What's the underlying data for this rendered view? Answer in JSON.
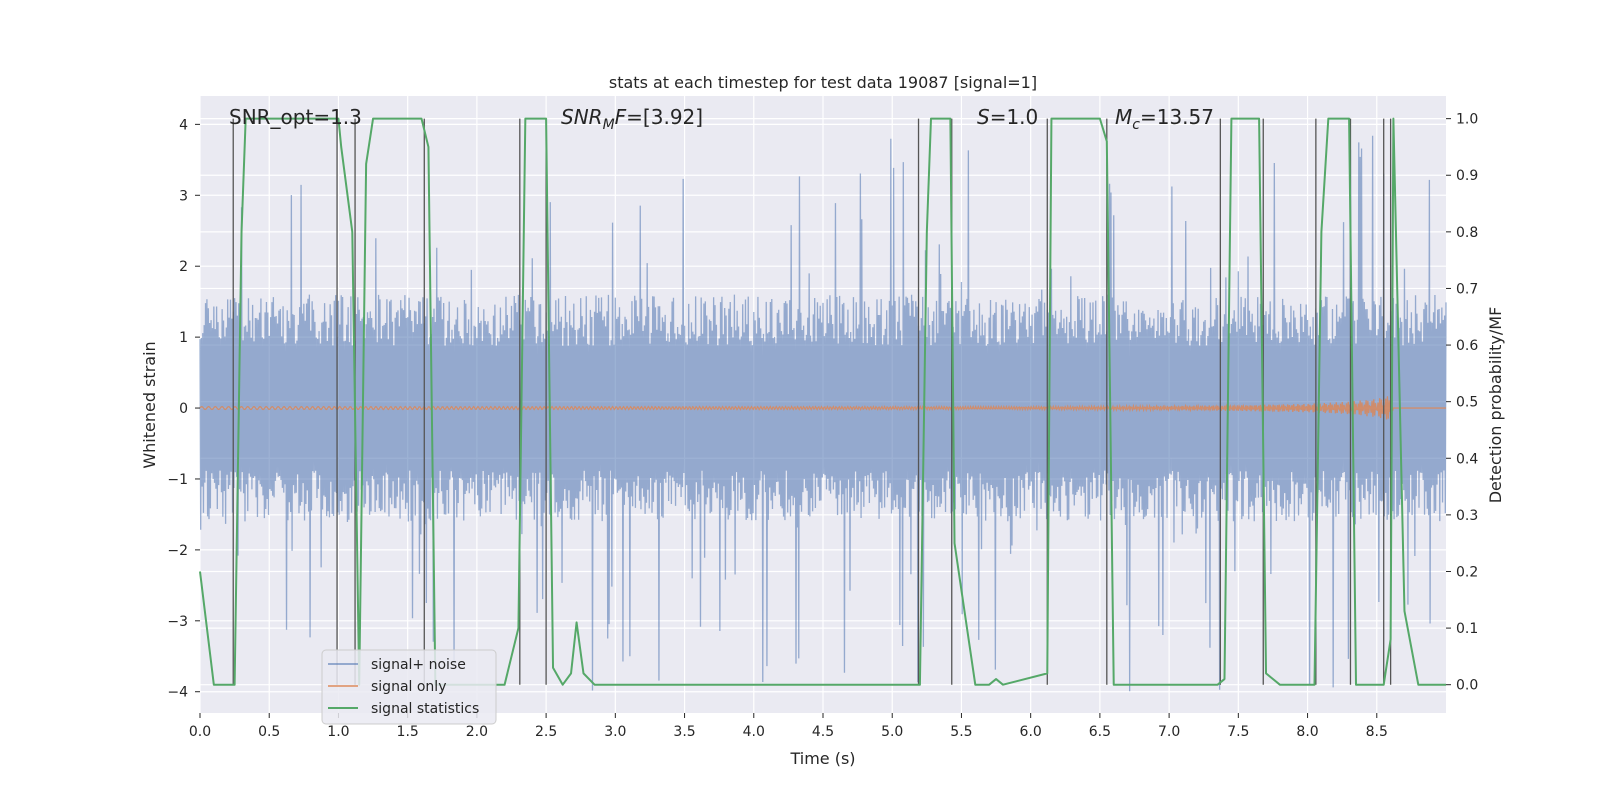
{
  "chart_data": {
    "type": "line",
    "title": "stats at each timestep for test data 19087 [signal=1]",
    "xlabel": "Time (s)",
    "ylabel_left": "Whitened strain",
    "ylabel_right": "Detection probability/MF",
    "xlim": [
      0,
      9
    ],
    "ylim_left": [
      -4.3,
      4.4
    ],
    "ylim_right": [
      -0.05,
      1.04
    ],
    "x_ticks": [
      0.0,
      0.5,
      1.0,
      1.5,
      2.0,
      2.5,
      3.0,
      3.5,
      4.0,
      4.5,
      5.0,
      5.5,
      6.0,
      6.5,
      7.0,
      7.5,
      8.0,
      8.5
    ],
    "x_tick_labels": [
      "0.0",
      "0.5",
      "1.0",
      "1.5",
      "2.0",
      "2.5",
      "3.0",
      "3.5",
      "4.0",
      "4.5",
      "5.0",
      "5.5",
      "6.0",
      "6.5",
      "7.0",
      "7.5",
      "8.0",
      "8.5"
    ],
    "y_left_ticks": [
      -4,
      -3,
      -2,
      -1,
      0,
      1,
      2,
      3,
      4
    ],
    "y_left_tick_labels": [
      "−4",
      "−3",
      "−2",
      "−1",
      "0",
      "1",
      "2",
      "3",
      "4"
    ],
    "y_right_ticks": [
      0.0,
      0.1,
      0.2,
      0.3,
      0.4,
      0.5,
      0.6,
      0.7,
      0.8,
      0.9,
      1.0
    ],
    "y_right_tick_labels": [
      "0.0",
      "0.1",
      "0.2",
      "0.3",
      "0.4",
      "0.5",
      "0.6",
      "0.7",
      "0.8",
      "0.9",
      "1.0"
    ],
    "grid": true,
    "annotations": [
      {
        "text": "SNR_opt=1.3",
        "x": 0.2,
        "y": 4.0
      },
      {
        "text": "SNR_MF=[3.92]",
        "x": 2.6,
        "y": 4.0
      },
      {
        "text": "S=1.0",
        "x": 5.6,
        "y": 4.0
      },
      {
        "text": "M_c=13.57",
        "x": 6.6,
        "y": 4.0
      }
    ],
    "legend": {
      "placement": "lower-left",
      "entries": [
        "signal+ noise",
        "signal only",
        "signal statistics"
      ]
    },
    "series": [
      {
        "name": "signal+ noise",
        "color": "#4c72b0",
        "description": "whitened strain noise, approx uniform amplitude envelope",
        "envelope": {
          "typical": 1.6,
          "max_peak": 4.0,
          "min_peak": -3.9
        }
      },
      {
        "name": "signal only",
        "color": "#dd8452",
        "description": "chirp signal near zero growing toward the end",
        "x": [
          0.0,
          6.0,
          7.0,
          7.5,
          8.0,
          8.3,
          8.5,
          8.6,
          8.62
        ],
        "amplitude": [
          0.02,
          0.02,
          0.03,
          0.04,
          0.06,
          0.09,
          0.13,
          0.18,
          0.0
        ]
      },
      {
        "name": "signal statistics",
        "color": "#55a868",
        "x": [
          0.0,
          0.1,
          0.25,
          0.3,
          0.33,
          1.0,
          1.02,
          1.1,
          1.15,
          1.2,
          1.25,
          1.6,
          1.65,
          1.7,
          1.8,
          2.2,
          2.3,
          2.35,
          2.5,
          2.55,
          2.62,
          2.68,
          2.72,
          2.77,
          2.85,
          5.2,
          5.25,
          5.28,
          5.42,
          5.45,
          5.6,
          5.7,
          5.75,
          5.8,
          6.12,
          6.15,
          6.5,
          6.55,
          6.6,
          7.35,
          7.4,
          7.45,
          7.65,
          7.7,
          7.8,
          8.05,
          8.1,
          8.15,
          8.3,
          8.35,
          8.55,
          8.6,
          8.62,
          8.7,
          8.8,
          9.0
        ],
        "values": [
          0.2,
          0.0,
          0.0,
          0.8,
          1.0,
          1.0,
          0.95,
          0.8,
          0.0,
          0.92,
          1.0,
          1.0,
          0.95,
          0.0,
          0.0,
          0.0,
          0.1,
          1.0,
          1.0,
          0.03,
          0.0,
          0.02,
          0.11,
          0.02,
          0.0,
          0.0,
          0.8,
          1.0,
          1.0,
          0.25,
          0.0,
          0.0,
          0.01,
          0.0,
          0.02,
          1.0,
          1.0,
          0.96,
          0.0,
          0.0,
          0.01,
          1.0,
          1.0,
          0.02,
          0.0,
          0.0,
          0.8,
          1.0,
          1.0,
          0.0,
          0.0,
          0.08,
          1.0,
          0.13,
          0.0,
          0.0
        ]
      }
    ],
    "vertical_lines_x": [
      0.24,
      0.99,
      1.12,
      1.62,
      2.31,
      2.5,
      5.19,
      5.43,
      6.12,
      6.55,
      7.37,
      7.68,
      8.06,
      8.31,
      8.55,
      8.6
    ]
  }
}
